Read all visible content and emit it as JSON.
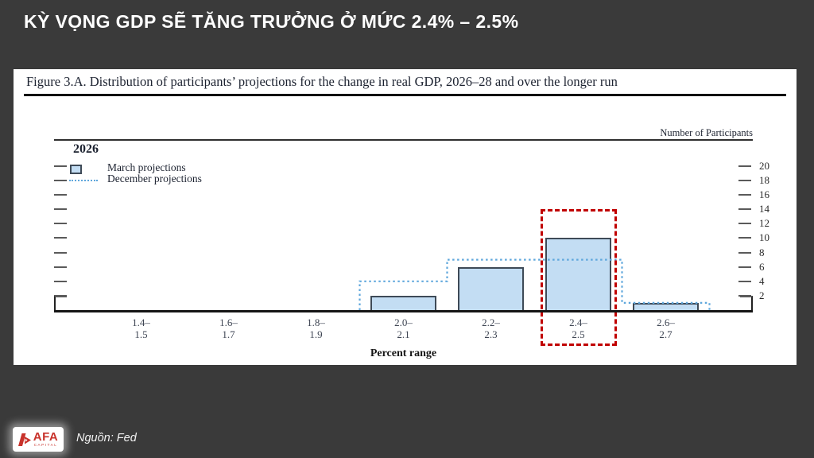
{
  "slide": {
    "title": "KỲ VỌNG GDP SẼ TĂNG TRƯỞNG Ở MỨC 2.4% – 2.5%",
    "source": "Nguồn: Fed",
    "logo_text": "AFA",
    "logo_subtext": "CAPITAL",
    "background_color": "#3a3a3a",
    "accent_red": "#c8322b"
  },
  "figure": {
    "title": "Figure 3.A. Distribution of participants’ projections for the change in real GDP, 2026–28 and over the longer run",
    "year_label": "2026",
    "legend": {
      "march": "March projections",
      "december": "December projections"
    },
    "right_axis_label": "Number of Participants",
    "x_axis_label": "Percent range"
  },
  "chart_data": {
    "type": "bar",
    "title": "Distribution of participants’ projections for the change in real GDP, 2026",
    "categories": [
      "1.4–1.5",
      "1.6–1.7",
      "1.8–1.9",
      "2.0–2.1",
      "2.2–2.3",
      "2.4–2.5",
      "2.6–2.7"
    ],
    "series": [
      {
        "name": "March projections",
        "type": "bar",
        "values": [
          0,
          0,
          0,
          2,
          6,
          10,
          1
        ],
        "fill": "#c3ddf3",
        "stroke": "#3e4a57"
      },
      {
        "name": "December projections",
        "type": "dotted-step",
        "values": [
          0,
          0,
          0,
          4,
          7,
          7,
          1
        ],
        "stroke": "#5fa7dc"
      }
    ],
    "xlabel": "Percent range",
    "ylabel": "Number of Participants",
    "ylim": [
      0,
      20
    ],
    "yticks": [
      2,
      4,
      6,
      8,
      10,
      12,
      14,
      16,
      18,
      20
    ],
    "legend_position": "top-left",
    "grid": false,
    "highlight": {
      "category": "2.4–2.5",
      "index": 5,
      "style": "dashed-box",
      "color": "#c00000"
    }
  }
}
